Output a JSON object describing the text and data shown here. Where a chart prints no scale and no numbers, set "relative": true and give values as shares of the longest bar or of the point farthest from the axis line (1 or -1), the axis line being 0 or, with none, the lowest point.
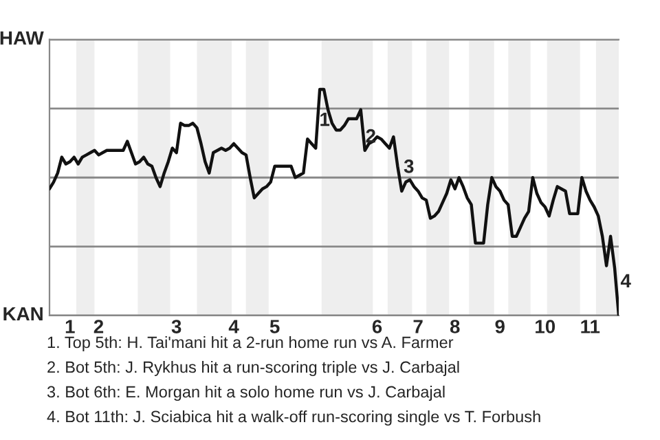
{
  "chart_data": {
    "type": "line",
    "categories": [
      null,
      null,
      null,
      null,
      null,
      "1",
      null,
      null,
      null,
      null,
      null,
      null,
      "2",
      null,
      null,
      null,
      null,
      null,
      null,
      null,
      null,
      null,
      null,
      null,
      null,
      null,
      null,
      null,
      null,
      null,
      null,
      "3",
      null,
      null,
      null,
      null,
      null,
      null,
      null,
      null,
      null,
      null,
      null,
      null,
      null,
      "4",
      null,
      null,
      null,
      null,
      null,
      null,
      null,
      null,
      null,
      "5",
      null,
      null,
      null,
      null,
      null,
      null,
      null,
      null,
      null,
      null,
      null,
      null,
      null,
      null,
      null,
      null,
      null,
      null,
      null,
      null,
      null,
      null,
      null,
      null,
      "6",
      null,
      null,
      null,
      null,
      null,
      null,
      null,
      null,
      null,
      "7",
      null,
      null,
      null,
      null,
      null,
      null,
      null,
      null,
      "8",
      null,
      null,
      null,
      null,
      null,
      null,
      null,
      null,
      null,
      null,
      "9",
      null,
      null,
      null,
      null,
      null,
      null,
      null,
      null,
      null,
      null,
      "10",
      null,
      null,
      null,
      null,
      null,
      null,
      null,
      null,
      null,
      null,
      "11",
      null,
      null,
      null,
      null,
      null,
      null,
      null
    ],
    "series": [
      {
        "color": "#111111",
        "values": [
          0.56,
          0.59,
          0.63,
          0.7,
          0.67,
          0.68,
          0.7,
          0.67,
          0.7,
          0.71,
          0.72,
          0.73,
          0.71,
          0.72,
          0.73,
          0.73,
          0.73,
          0.73,
          0.73,
          0.77,
          0.72,
          0.67,
          0.68,
          0.7,
          0.67,
          0.66,
          0.61,
          0.57,
          0.63,
          0.68,
          0.74,
          0.72,
          0.85,
          0.84,
          0.84,
          0.85,
          0.83,
          0.76,
          0.68,
          0.63,
          0.72,
          0.73,
          0.74,
          0.73,
          0.74,
          0.76,
          0.74,
          0.72,
          0.71,
          0.61,
          0.52,
          0.54,
          0.56,
          0.57,
          0.59,
          0.66,
          0.66,
          0.66,
          0.66,
          0.66,
          0.61,
          0.62,
          0.63,
          0.78,
          0.76,
          0.74,
          1,
          1,
          0.91,
          0.85,
          0.82,
          0.82,
          0.84,
          0.87,
          0.87,
          0.87,
          0.91,
          0.73,
          0.76,
          0.77,
          0.79,
          0.78,
          0.76,
          0.74,
          0.79,
          0.66,
          0.55,
          0.59,
          0.6,
          0.57,
          0.55,
          0.52,
          0.51,
          0.43,
          0.44,
          0.46,
          0.5,
          0.54,
          0.6,
          0.56,
          0.61,
          0.57,
          0.52,
          0.49,
          0.32,
          0.32,
          0.32,
          0.49,
          0.61,
          0.57,
          0.55,
          0.51,
          0.49,
          0.35,
          0.35,
          0.39,
          0.43,
          0.46,
          0.61,
          0.54,
          0.5,
          0.48,
          0.44,
          0.51,
          0.57,
          0.56,
          0.55,
          0.45,
          0.45,
          0.45,
          0.61,
          0.55,
          0.51,
          0.48,
          0.44,
          0.35,
          0.22,
          0.35,
          0.21,
          0
        ]
      }
    ],
    "relative": true,
    "grid": "y",
    "annotations": [
      "HAW",
      "KAN",
      "1",
      "2",
      "3",
      "4",
      "1. Top 5th: H. Tai'mani hit a 2-run home run vs A. Farmer",
      "2. Bot 5th: J. Rykhus hit a run-scoring triple vs J. Carbajal",
      "3. Bot 6th: E. Morgan hit a solo home run vs J. Carbajal",
      "4. Bot 11th: J. Sciabica hit a walk-off run-scoring single vs T. Forbush"
    ]
  }
}
